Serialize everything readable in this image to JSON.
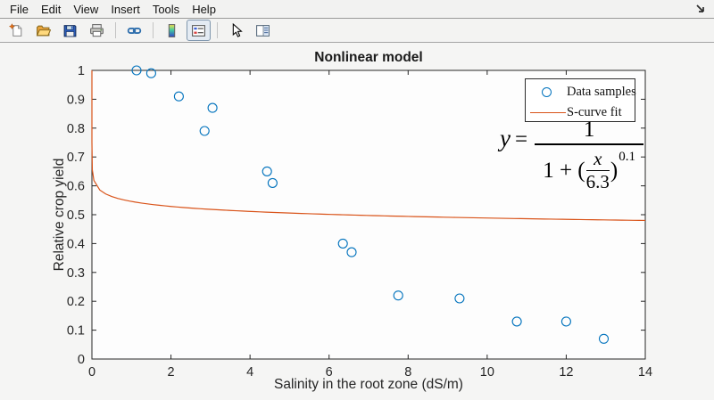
{
  "menubar": {
    "items": [
      {
        "label": "File"
      },
      {
        "label": "Edit"
      },
      {
        "label": "View"
      },
      {
        "label": "Insert"
      },
      {
        "label": "Tools"
      },
      {
        "label": "Help"
      }
    ]
  },
  "toolbar": {
    "buttons": [
      {
        "name": "new-figure-button",
        "icon": "new-figure-icon",
        "pressed": false
      },
      {
        "name": "open-file-button",
        "icon": "open-file-icon",
        "pressed": false
      },
      {
        "name": "save-figure-button",
        "icon": "save-figure-icon",
        "pressed": false
      },
      {
        "name": "print-figure-button",
        "icon": "print-figure-icon",
        "pressed": false
      },
      {
        "name": "link-plot-button",
        "icon": "link-plot-icon",
        "pressed": false
      },
      {
        "name": "insert-colorbar-button",
        "icon": "insert-colorbar-icon",
        "pressed": false
      },
      {
        "name": "insert-legend-button",
        "icon": "insert-legend-icon",
        "pressed": true
      },
      {
        "name": "edit-plot-button",
        "icon": "edit-plot-icon",
        "pressed": false
      },
      {
        "name": "property-inspector-button",
        "icon": "property-inspector-icon",
        "pressed": false
      }
    ]
  },
  "formula": {
    "lhs": "y",
    "equals": "=",
    "numerator": "1",
    "den_prefix": "1 + (",
    "nested_numerator": "x",
    "nested_denominator": "6.3",
    "den_suffix": ")",
    "exponent": "0.1"
  },
  "chart_data": {
    "type": "scatter",
    "title": "Nonlinear model",
    "xlabel": "Salinity in the root zone (dS/m)",
    "ylabel": "Relative crop yield",
    "xlim": [
      0,
      14
    ],
    "ylim": [
      0,
      1
    ],
    "grid": false,
    "axis_color": "#262626",
    "plot_bg": "#fdfdfd",
    "legend_position": "northeast",
    "xticks": {
      "values": [
        0,
        2,
        4,
        6,
        8,
        10,
        12,
        14
      ],
      "labels": [
        "0",
        "2",
        "4",
        "6",
        "8",
        "10",
        "12",
        "14"
      ]
    },
    "yticks": {
      "values": [
        0,
        0.1,
        0.2,
        0.3,
        0.4,
        0.5,
        0.6,
        0.7,
        0.8,
        0.9,
        1
      ],
      "labels": [
        "0",
        "0.1",
        "0.2",
        "0.3",
        "0.4",
        "0.5",
        "0.6",
        "0.7",
        "0.8",
        "0.9",
        "1"
      ]
    },
    "series": [
      {
        "name": "Data samples",
        "type": "scatter",
        "marker": "circle",
        "color": "#0072BD",
        "points": [
          [
            1.13,
            1.0
          ],
          [
            1.5,
            0.99
          ],
          [
            2.2,
            0.91
          ],
          [
            3.05,
            0.87
          ],
          [
            2.85,
            0.79
          ],
          [
            4.43,
            0.65
          ],
          [
            4.57,
            0.61
          ],
          [
            6.35,
            0.4
          ],
          [
            6.57,
            0.37
          ],
          [
            7.75,
            0.22
          ],
          [
            9.3,
            0.21
          ],
          [
            10.75,
            0.13
          ],
          [
            12.0,
            0.13
          ],
          [
            12.95,
            0.07
          ]
        ]
      },
      {
        "name": "S-curve fit",
        "type": "curve",
        "color": "#D95319",
        "formula": "y = 1 / (1 + (x/6.3)^0.1)",
        "params": {
          "x50": 6.3,
          "p": 0.1
        }
      }
    ],
    "annotation": "y = 1 / (1 + (x/6.3)^0.1)"
  }
}
